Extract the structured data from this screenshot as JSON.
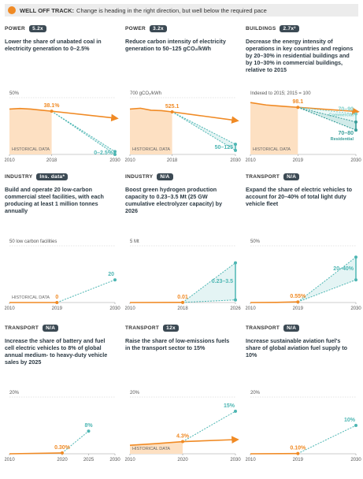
{
  "header": {
    "status": "WELL OFF TRACK:",
    "text": "Change is heading in the right direction, but well below the required pace"
  },
  "chart_data": [
    {
      "type": "line",
      "sector": "POWER",
      "badge": "5.2x",
      "title": "Lower the share of unabated coal in electricity generation to 0–2.5%",
      "ylim": [
        0,
        50
      ],
      "yticks": [
        {
          "value": 50,
          "label": "50%"
        }
      ],
      "xlim": [
        2010,
        2030
      ],
      "xticks": [
        2010,
        2018,
        2030
      ],
      "history_label": "HISTORICAL DATA",
      "shaded": true,
      "series": [
        {
          "color": "#f08a24",
          "x": [
            2010,
            2012,
            2014,
            2016,
            2018
          ],
          "values": [
            40,
            40.5,
            40,
            39,
            38.1
          ]
        },
        {
          "color": "#f08a24",
          "arrow": true,
          "x": [
            2018,
            2030
          ],
          "values": [
            38.1,
            32
          ]
        },
        {
          "color": "#4db6b3",
          "dashed": true,
          "x": [
            2018,
            2030
          ],
          "values": [
            38.1,
            2.5
          ],
          "range": {
            "x": 2030,
            "low": 0,
            "high": 2.5,
            "label": "0–2.5%"
          }
        }
      ],
      "callouts": [
        {
          "x": 2018,
          "value": 38.1,
          "label": "38.1%"
        }
      ]
    },
    {
      "type": "line",
      "sector": "POWER",
      "badge": "3.2x",
      "title": "Reduce carbon intensity of electricity generation to 50–125 gCO₂/kWh",
      "ylim": [
        0,
        700
      ],
      "yticks": [
        {
          "value": 700,
          "label": "700 gCO₂/kWh"
        }
      ],
      "xlim": [
        2010,
        2030
      ],
      "xticks": [
        2010,
        2018,
        2030
      ],
      "history_label": "HISTORICAL DATA",
      "shaded": true,
      "series": [
        {
          "color": "#f08a24",
          "x": [
            2010,
            2012,
            2014,
            2016,
            2018
          ],
          "values": [
            560,
            570,
            545,
            540,
            525.1
          ]
        },
        {
          "color": "#f08a24",
          "arrow": true,
          "x": [
            2018,
            2030
          ],
          "values": [
            525.1,
            420
          ]
        },
        {
          "color": "#4db6b3",
          "dashed": true,
          "x": [
            2018,
            2030
          ],
          "values": [
            525.1,
            125
          ],
          "range": {
            "x": 2030,
            "low": 50,
            "high": 125,
            "label": "50–125"
          }
        }
      ],
      "callouts": [
        {
          "x": 2018,
          "value": 525.1,
          "label": "525.1"
        }
      ]
    },
    {
      "type": "line",
      "sector": "BUILDINGS",
      "badge": "2.7x²",
      "title": "Decrease the energy intensity of operations in key countries and regions by 20–30% in residential buildings and by 10–30% in commercial buildings, relative to 2015",
      "ylim": [
        40,
        110
      ],
      "yticks": [],
      "annotation": "Indexed to 2015; 2015 = 100",
      "xlim": [
        2010,
        2030
      ],
      "xticks": [
        2010,
        2019,
        2030
      ],
      "history_label": "HISTORICAL DATA",
      "shaded": true,
      "series": [
        {
          "color": "#f08a24",
          "x": [
            2010,
            2013,
            2015,
            2017,
            2019
          ],
          "values": [
            104,
            101,
            100,
            99,
            98.1
          ]
        },
        {
          "color": "#f08a24",
          "arrow": true,
          "x": [
            2019,
            2030
          ],
          "values": [
            98.1,
            93
          ]
        },
        {
          "color": "#7fcfc9",
          "dashed": true,
          "x": [
            2019,
            2030
          ],
          "values": [
            98.1,
            90
          ],
          "range": {
            "x": 2030,
            "low": 70,
            "high": 90,
            "label": "70–90",
            "sublabel": "Commercial"
          }
        },
        {
          "color": "#3a9e9a",
          "dashed": true,
          "x": [
            2019,
            2030
          ],
          "values": [
            98.1,
            80
          ],
          "range": {
            "x": 2030,
            "low": 70,
            "high": 80,
            "label": "70–80",
            "sublabel": "Residential"
          }
        }
      ],
      "callouts": [
        {
          "x": 2019,
          "value": 98.1,
          "label": "98.1"
        }
      ]
    },
    {
      "type": "line",
      "sector": "INDUSTRY",
      "badge": "Ins. data*",
      "title": "Build and operate 20 low-carbon commercial steel facilities, with each producing at least 1 million tonnes annually",
      "ylim": [
        0,
        50
      ],
      "yticks": [
        {
          "value": 50,
          "label": "50 low carbon facilities"
        }
      ],
      "xlim": [
        2010,
        2030
      ],
      "xticks": [
        2010,
        2019,
        2030
      ],
      "history_label": "HISTORICAL DATA",
      "shaded": false,
      "series": [
        {
          "color": "#f08a24",
          "x": [
            2010,
            2019
          ],
          "values": [
            0,
            0
          ]
        },
        {
          "color": "#4db6b3",
          "dashed": true,
          "x": [
            2019,
            2030
          ],
          "values": [
            0,
            20
          ]
        }
      ],
      "callouts": [
        {
          "x": 2019,
          "value": 0,
          "label": "0"
        },
        {
          "x": 2030,
          "value": 20,
          "label": "20",
          "target": true
        }
      ]
    },
    {
      "type": "line",
      "sector": "INDUSTRY",
      "badge": "N/A",
      "title": "Boost green hydrogen production capacity to 0.23–3.5 Mt (25 GW cumulative electrolyzer capacity) by 2026",
      "ylim": [
        0,
        5
      ],
      "yticks": [
        {
          "value": 5,
          "label": "5 Mt"
        }
      ],
      "xlim": [
        2010,
        2026
      ],
      "xticks": [
        2010,
        2018,
        2026
      ],
      "shaded": false,
      "series": [
        {
          "color": "#f08a24",
          "x": [
            2010,
            2018
          ],
          "values": [
            0,
            0.01
          ]
        },
        {
          "color": "#4db6b3",
          "dashed": true,
          "x": [
            2018,
            2026
          ],
          "values": [
            0.01,
            3.5
          ],
          "range": {
            "x": 2026,
            "low": 0.23,
            "high": 3.5,
            "label": "0.23–3.5"
          }
        }
      ],
      "callouts": [
        {
          "x": 2018,
          "value": 0.01,
          "label": "0.01"
        }
      ]
    },
    {
      "type": "line",
      "sector": "TRANSPORT",
      "badge": "N/A",
      "title": "Expand the share of electric vehicles to account for 20–40% of total light duty vehicle fleet",
      "ylim": [
        0,
        50
      ],
      "yticks": [
        {
          "value": 50,
          "label": "50%"
        }
      ],
      "xlim": [
        2010,
        2030
      ],
      "xticks": [
        2010,
        2019,
        2030
      ],
      "shaded": false,
      "series": [
        {
          "color": "#f08a24",
          "x": [
            2010,
            2015,
            2019
          ],
          "values": [
            0,
            0.1,
            0.55
          ]
        },
        {
          "color": "#4db6b3",
          "dashed": true,
          "x": [
            2019,
            2030
          ],
          "values": [
            0.55,
            40
          ],
          "range": {
            "x": 2030,
            "low": 20,
            "high": 40,
            "label": "20–40%"
          }
        }
      ],
      "callouts": [
        {
          "x": 2019,
          "value": 0.55,
          "label": "0.55%"
        }
      ]
    },
    {
      "type": "line",
      "sector": "TRANSPORT",
      "badge": "N/A",
      "title": "Increase the share of battery and fuel cell electric vehicles to 8% of global annual medium- to heavy-duty vehicle sales by 2025",
      "ylim": [
        0,
        20
      ],
      "yticks": [
        {
          "value": 20,
          "label": "20%"
        }
      ],
      "xlim": [
        2010,
        2030
      ],
      "xticks": [
        2010,
        2020,
        2025,
        2030
      ],
      "shaded": false,
      "series": [
        {
          "color": "#f08a24",
          "x": [
            2010,
            2020
          ],
          "values": [
            0,
            0.3
          ]
        },
        {
          "color": "#4db6b3",
          "dashed": true,
          "x": [
            2020,
            2025
          ],
          "values": [
            0.3,
            8
          ]
        }
      ],
      "callouts": [
        {
          "x": 2020,
          "value": 0.3,
          "label": "0.30%"
        },
        {
          "x": 2025,
          "value": 8,
          "label": "8%",
          "target": true
        }
      ]
    },
    {
      "type": "line",
      "sector": "TRANSPORT",
      "badge": "12x",
      "title": "Raise the share of low-emissions fuels in the transport sector to 15%",
      "ylim": [
        0,
        20
      ],
      "yticks": [
        {
          "value": 20,
          "label": "20%"
        }
      ],
      "xlim": [
        2010,
        2030
      ],
      "xticks": [
        2010,
        2020,
        2030
      ],
      "history_label": "HISTORICAL DATA",
      "shaded": true,
      "series": [
        {
          "color": "#f08a24",
          "x": [
            2010,
            2015,
            2020
          ],
          "values": [
            3,
            3.6,
            4.3
          ]
        },
        {
          "color": "#f08a24",
          "arrow": true,
          "x": [
            2020,
            2030
          ],
          "values": [
            4.3,
            5
          ]
        },
        {
          "color": "#4db6b3",
          "dashed": true,
          "x": [
            2020,
            2030
          ],
          "values": [
            4.3,
            15
          ]
        }
      ],
      "callouts": [
        {
          "x": 2020,
          "value": 4.3,
          "label": "4.3%"
        },
        {
          "x": 2030,
          "value": 15,
          "label": "15%",
          "target": true
        }
      ]
    },
    {
      "type": "line",
      "sector": "TRANSPORT",
      "badge": "N/A",
      "title": "Increase sustainable aviation fuel's share of global aviation fuel supply to 10%",
      "ylim": [
        0,
        20
      ],
      "yticks": [
        {
          "value": 20,
          "label": "20%"
        }
      ],
      "xlim": [
        2010,
        2030
      ],
      "xticks": [
        2010,
        2019,
        2030
      ],
      "shaded": false,
      "series": [
        {
          "color": "#f08a24",
          "x": [
            2010,
            2019
          ],
          "values": [
            0,
            0.1
          ]
        },
        {
          "color": "#4db6b3",
          "dashed": true,
          "x": [
            2019,
            2030
          ],
          "values": [
            0.1,
            10
          ]
        }
      ],
      "callouts": [
        {
          "x": 2019,
          "value": 0.1,
          "label": "0.10%"
        },
        {
          "x": 2030,
          "value": 10,
          "label": "10%",
          "target": true
        }
      ]
    }
  ]
}
